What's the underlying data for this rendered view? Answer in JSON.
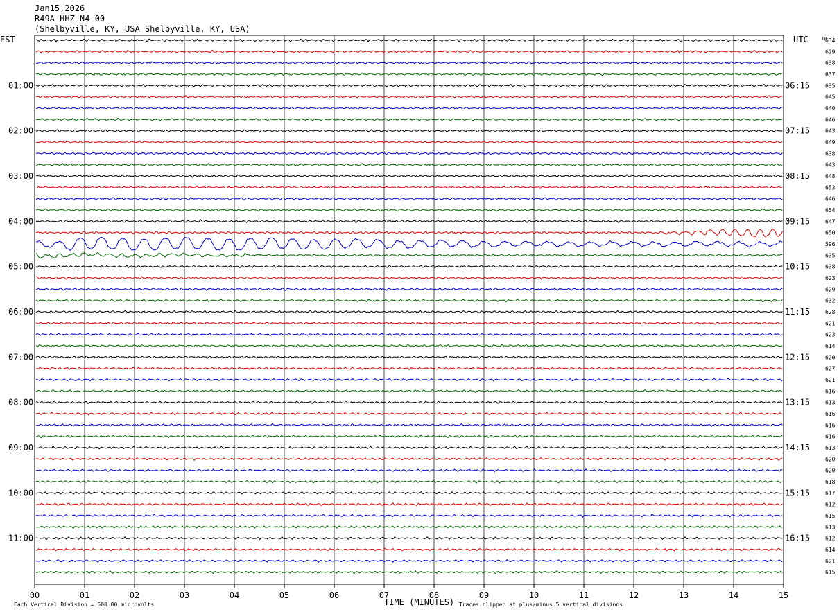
{
  "header": {
    "date": "Jan15,2026",
    "station": "R49A HHZ N4 00",
    "location": "(Shelbyville, KY, USA Shelbyville, KY, USA)"
  },
  "labels": {
    "left_tz": "EST",
    "right_tz": "UTC",
    "dc": "DC",
    "x_axis_title": "TIME (MINUTES)",
    "scale_note": "Each Vertical Division =  500.00 microvolts",
    "clip_note": "Traces clipped at plus/minus 5 vertical divisions"
  },
  "chart_data": {
    "type": "line",
    "x_ticks": [
      "00",
      "01",
      "02",
      "03",
      "04",
      "05",
      "06",
      "07",
      "08",
      "09",
      "10",
      "11",
      "12",
      "13",
      "14",
      "15"
    ],
    "xlim": [
      0,
      15
    ],
    "xlabel": "TIME (MINUTES)",
    "left_hour_labels": [
      {
        "row": 4,
        "text": "01:00"
      },
      {
        "row": 8,
        "text": "02:00"
      },
      {
        "row": 12,
        "text": "03:00"
      },
      {
        "row": 16,
        "text": "04:00"
      },
      {
        "row": 20,
        "text": "05:00"
      },
      {
        "row": 24,
        "text": "06:00"
      },
      {
        "row": 28,
        "text": "07:00"
      },
      {
        "row": 32,
        "text": "08:00"
      },
      {
        "row": 36,
        "text": "09:00"
      },
      {
        "row": 40,
        "text": "10:00"
      },
      {
        "row": 44,
        "text": "11:00"
      }
    ],
    "right_hour_labels": [
      {
        "row": 4,
        "text": "06:15"
      },
      {
        "row": 8,
        "text": "07:15"
      },
      {
        "row": 12,
        "text": "08:15"
      },
      {
        "row": 16,
        "text": "09:15"
      },
      {
        "row": 20,
        "text": "10:15"
      },
      {
        "row": 24,
        "text": "11:15"
      },
      {
        "row": 28,
        "text": "12:15"
      },
      {
        "row": 32,
        "text": "13:15"
      },
      {
        "row": 36,
        "text": "14:15"
      },
      {
        "row": 40,
        "text": "15:15"
      },
      {
        "row": 44,
        "text": "16:15"
      }
    ],
    "dc_offsets": [
      634,
      629,
      638,
      637,
      635,
      645,
      640,
      646,
      643,
      649,
      638,
      643,
      648,
      653,
      646,
      654,
      647,
      650,
      596,
      635,
      638,
      623,
      629,
      632,
      628,
      621,
      623,
      614,
      620,
      627,
      621,
      616,
      613,
      616,
      616,
      616,
      613,
      620,
      620,
      618,
      617,
      612,
      615,
      613,
      612,
      614,
      621,
      615
    ],
    "trace_colors": [
      "#000000",
      "#d40000",
      "#0000c8",
      "#006400"
    ],
    "events": [
      {
        "row": 17,
        "start_min": 12.2,
        "end_min": 15,
        "peak_amplitude_div": 1.6
      },
      {
        "row": 18,
        "start_min": 0,
        "end_min": 15,
        "peak_amplitude_div": 2.6
      },
      {
        "row": 19,
        "start_min": 0,
        "end_min": 4.5,
        "peak_amplitude_div": 0.8
      }
    ],
    "grid": true
  },
  "colors": {
    "grid": "#000000",
    "background": "#ffffff"
  }
}
